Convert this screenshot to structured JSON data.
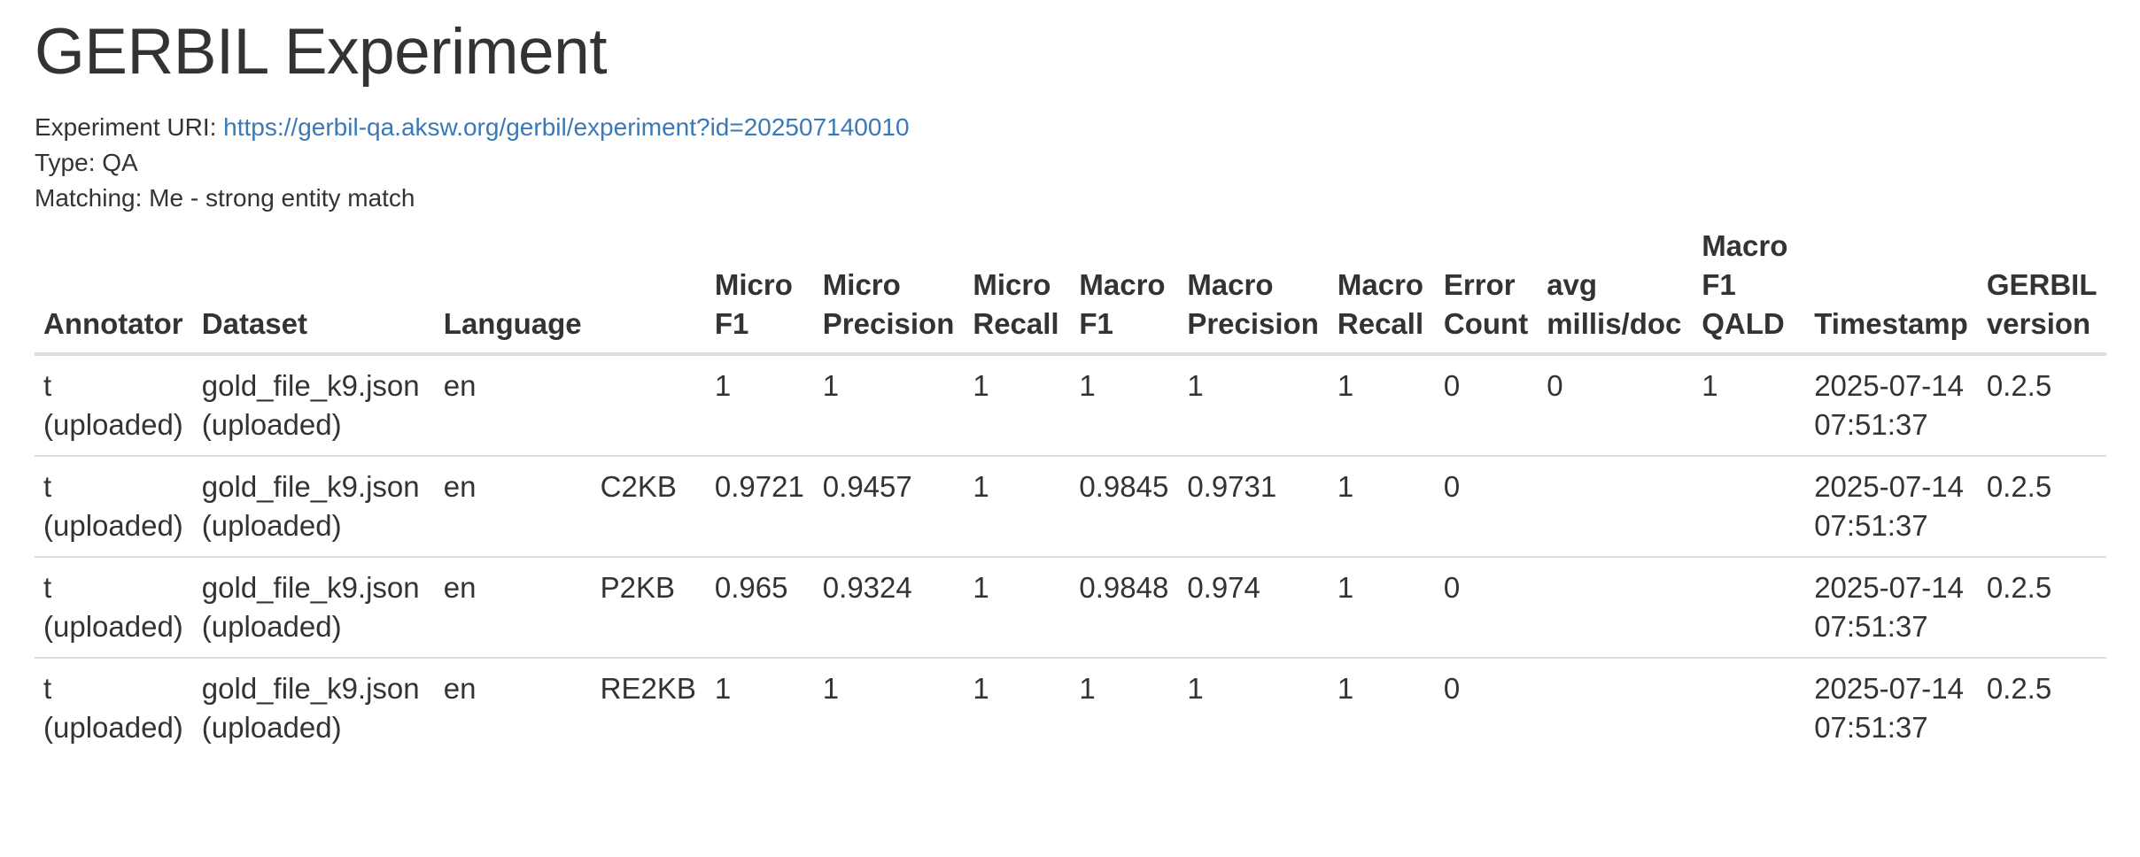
{
  "page": {
    "title": "GERBIL Experiment"
  },
  "meta": {
    "uri_label": "Experiment URI: ",
    "uri_value": "https://gerbil-qa.aksw.org/gerbil/experiment?id=202507140010",
    "type_label": "Type: ",
    "type_value": "QA",
    "matching_label": "Matching: ",
    "matching_value": "Me - strong entity match"
  },
  "table": {
    "headers": [
      [
        "Annotator"
      ],
      [
        "Dataset"
      ],
      [
        "Language"
      ],
      [
        ""
      ],
      [
        "Micro",
        "F1"
      ],
      [
        "Micro",
        "Precision"
      ],
      [
        "Micro",
        "Recall"
      ],
      [
        "Macro",
        "F1"
      ],
      [
        "Macro",
        "Precision"
      ],
      [
        "Macro",
        "Recall"
      ],
      [
        "Error",
        "Count"
      ],
      [
        "avg",
        "millis/doc"
      ],
      [
        "Macro",
        "F1",
        "QALD"
      ],
      [
        "Timestamp"
      ],
      [
        "GERBIL",
        "version"
      ]
    ],
    "rows": [
      [
        [
          "t",
          "(uploaded)"
        ],
        [
          "gold_file_k9.json",
          "(uploaded)"
        ],
        [
          "en"
        ],
        [
          ""
        ],
        [
          "1"
        ],
        [
          "1"
        ],
        [
          "1"
        ],
        [
          "1"
        ],
        [
          "1"
        ],
        [
          "1"
        ],
        [
          "0"
        ],
        [
          "0"
        ],
        [
          "1"
        ],
        [
          "2025-07-14",
          "07:51:37"
        ],
        [
          "0.2.5"
        ]
      ],
      [
        [
          "t",
          "(uploaded)"
        ],
        [
          "gold_file_k9.json",
          "(uploaded)"
        ],
        [
          "en"
        ],
        [
          "C2KB"
        ],
        [
          "0.9721"
        ],
        [
          "0.9457"
        ],
        [
          "1"
        ],
        [
          "0.9845"
        ],
        [
          "0.9731"
        ],
        [
          "1"
        ],
        [
          "0"
        ],
        [
          ""
        ],
        [
          ""
        ],
        [
          "2025-07-14",
          "07:51:37"
        ],
        [
          "0.2.5"
        ]
      ],
      [
        [
          "t",
          "(uploaded)"
        ],
        [
          "gold_file_k9.json",
          "(uploaded)"
        ],
        [
          "en"
        ],
        [
          "P2KB"
        ],
        [
          "0.965"
        ],
        [
          "0.9324"
        ],
        [
          "1"
        ],
        [
          "0.9848"
        ],
        [
          "0.974"
        ],
        [
          "1"
        ],
        [
          "0"
        ],
        [
          ""
        ],
        [
          ""
        ],
        [
          "2025-07-14",
          "07:51:37"
        ],
        [
          "0.2.5"
        ]
      ],
      [
        [
          "t",
          "(uploaded)"
        ],
        [
          "gold_file_k9.json",
          "(uploaded)"
        ],
        [
          "en"
        ],
        [
          "RE2KB"
        ],
        [
          "1"
        ],
        [
          "1"
        ],
        [
          "1"
        ],
        [
          "1"
        ],
        [
          "1"
        ],
        [
          "1"
        ],
        [
          "0"
        ],
        [
          ""
        ],
        [
          ""
        ],
        [
          "2025-07-14",
          "07:51:37"
        ],
        [
          "0.2.5"
        ]
      ]
    ]
  }
}
